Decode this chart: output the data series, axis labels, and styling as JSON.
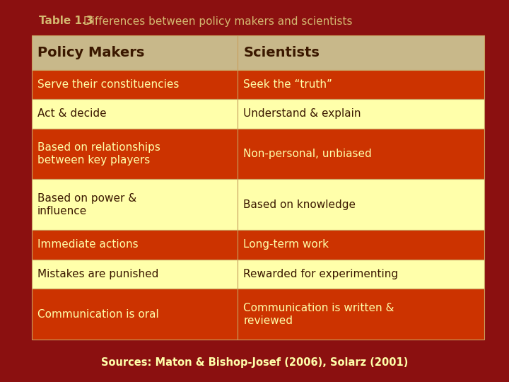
{
  "title_bold": "Table 1.3",
  "title_rest": " Differences between policy makers and scientists",
  "bg_color": "#8B1010",
  "header_color": "#C8B88A",
  "row_color_odd": "#CC3300",
  "row_color_even": "#FFFFAA",
  "header_text_color": "#3B1800",
  "odd_text_color": "#FFFFAA",
  "even_text_color": "#3B1800",
  "border_color": "#C8A060",
  "title_color": "#D4B870",
  "footer_text": "Sources: Maton & Bishop-Josef (2006), Solarz (2001)",
  "footer_color": "#FFFFAA",
  "col1_header": "Policy Makers",
  "col2_header": "Scientists",
  "rows": [
    [
      "Serve their constituencies",
      "Seek the “truth”"
    ],
    [
      "Act & decide",
      "Understand & explain"
    ],
    [
      "Based on relationships\nbetween key players",
      "Non-personal, unbiased"
    ],
    [
      "Based on power &\ninfluence",
      "Based on knowledge"
    ],
    [
      "Immediate actions",
      "Long-term work"
    ],
    [
      "Mistakes are punished",
      "Rewarded for experimenting"
    ],
    [
      "Communication is oral",
      "Communication is written &\nreviewed"
    ]
  ],
  "row_colors": [
    [
      "#CC3300",
      "#FFFFAA"
    ],
    [
      "#CC3300",
      "#FFFFAA"
    ],
    [
      "#FFFFAA",
      "#FFFFAA"
    ],
    [
      "#FFFFAA",
      "#FFFFAA"
    ],
    [
      "#CC3300",
      "#FFFFAA"
    ],
    [
      "#FFFFAA",
      "#FFFFAA"
    ],
    [
      "#CC3300",
      "#FFFFAA"
    ],
    [
      "#FFFFAA",
      "#FFFFAA"
    ],
    [
      "#CC3300",
      "#FFFFAA"
    ],
    [
      "#FFFFAA",
      "#FFFFAA"
    ]
  ],
  "fig_width": 7.2,
  "fig_height": 5.4,
  "dpi": 100
}
